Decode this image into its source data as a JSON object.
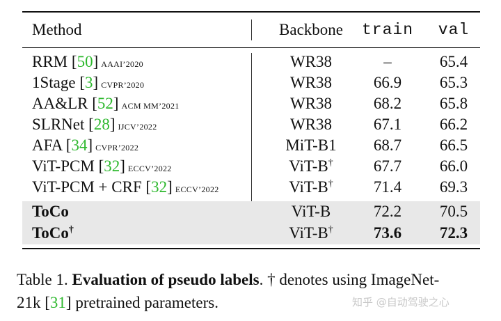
{
  "header": {
    "method": "Method",
    "backbone": "Backbone",
    "train": "train",
    "val": "val"
  },
  "rows": [
    {
      "method": "RRM",
      "ref": "50",
      "venue": "AAAI’2020",
      "backbone": "WR38",
      "dagger": "",
      "train": "–",
      "val": "65.4"
    },
    {
      "method": "1Stage",
      "ref": "3",
      "venue": "CVPR’2020",
      "backbone": "WR38",
      "dagger": "",
      "train": "66.9",
      "val": "65.3"
    },
    {
      "method": "AA&LR",
      "ref": "52",
      "venue": "ACM MM’2021",
      "backbone": "WR38",
      "dagger": "",
      "train": "68.2",
      "val": "65.8"
    },
    {
      "method": "SLRNet",
      "ref": "28",
      "venue": "IJCV’2022",
      "backbone": "WR38",
      "dagger": "",
      "train": "67.1",
      "val": "66.2"
    },
    {
      "method": "AFA",
      "ref": "34",
      "venue": "CVPR’2022",
      "backbone": "MiT-B1",
      "dagger": "",
      "train": "68.7",
      "val": "66.5"
    },
    {
      "method": "ViT-PCM",
      "ref": "32",
      "venue": "ECCV’2022",
      "backbone": "ViT-B",
      "dagger": "†",
      "train": "67.7",
      "val": "66.0"
    },
    {
      "method": "ViT-PCM + CRF",
      "ref": "32",
      "venue": "ECCV’2022",
      "backbone": "ViT-B",
      "dagger": "†",
      "train": "71.4",
      "val": "69.3"
    },
    {
      "method": "ToCo",
      "method_dagger": "",
      "backbone": "ViT-B",
      "dagger": "",
      "train": "72.2",
      "val": "70.5"
    },
    {
      "method": "ToCo",
      "method_dagger": "†",
      "backbone": "ViT-B",
      "dagger": "†",
      "train": "73.6",
      "val": "72.3"
    }
  ],
  "caption": {
    "prefix": "Table 1. ",
    "title": "Evaluation of pseudo labels",
    "after_title": ". † denotes using ImageNet-",
    "line2_a": "21k [",
    "ref": "31",
    "line2_b": "] pretrained parameters."
  },
  "watermark": "知乎 @自动驾驶之心",
  "colors": {
    "ref": "#2db82d",
    "highlight_row": "#e8e8e8"
  }
}
